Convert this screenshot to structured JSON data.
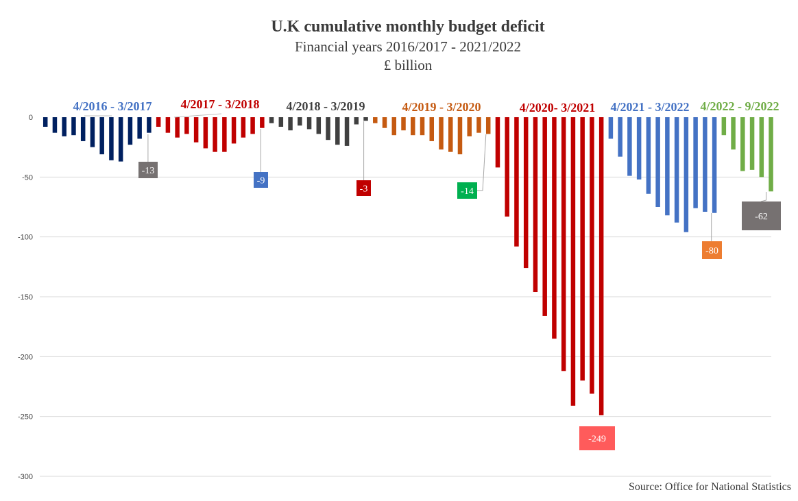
{
  "chart_data": {
    "type": "bar",
    "title": "U.K cumulative monthly budget deficit",
    "subtitle": "Financial years 2016/2017 - 2021/2022",
    "ylabel": "£ billion",
    "source": "Source: Office for National Statistics",
    "ylim": [
      -300,
      0
    ],
    "yticks": [
      0,
      -50,
      -100,
      -150,
      -200,
      -250,
      -300
    ],
    "grid": true,
    "series": [
      {
        "name": "4/2016 - 3/2017",
        "color": "#002060",
        "label_color": "#4472c4",
        "values": [
          -8,
          -13,
          -16,
          -15,
          -20,
          -25,
          -31,
          -36,
          -37,
          -23,
          -18,
          -13
        ]
      },
      {
        "name": "4/2017 - 3/2018",
        "color": "#c00000",
        "label_color": "#c00000",
        "values": [
          -8,
          -13,
          -17,
          -14,
          -21,
          -26,
          -29,
          -29,
          -22,
          -17,
          -14,
          -9
        ]
      },
      {
        "name": "4/2018 - 3/2019",
        "color": "#404040",
        "label_color": "#404040",
        "values": [
          -5,
          -8,
          -11,
          -7,
          -10,
          -14,
          -19,
          -23,
          -24,
          -6,
          -3
        ]
      },
      {
        "name": "4/2019 - 3/2020",
        "color": "#c55a11",
        "label_color": "#c55a11",
        "values": [
          -5,
          -9,
          -15,
          -11,
          -15,
          -15,
          -20,
          -27,
          -29,
          -31,
          -16,
          -13,
          -14
        ]
      },
      {
        "name": "4/2020- 3/2021",
        "color": "#c00000",
        "label_color": "#c00000",
        "values": [
          -42,
          -83,
          -108,
          -126,
          -146,
          -166,
          -185,
          -212,
          -241,
          -220,
          -231,
          -249
        ]
      },
      {
        "name": "4/2021 - 3/2022",
        "color": "#4472c4",
        "label_color": "#4472c4",
        "values": [
          -18,
          -33,
          -49,
          -52,
          -64,
          -75,
          -82,
          -88,
          -96,
          -76,
          -79,
          -80
        ]
      },
      {
        "name": "4/2022 - 9/2022",
        "color": "#70ad47",
        "label_color": "#70ad47",
        "values": [
          -15,
          -27,
          -45,
          -44,
          -50,
          -62
        ]
      }
    ],
    "data_labels": [
      {
        "series": 0,
        "index": 11,
        "text": "-13",
        "color": "#767171"
      },
      {
        "series": 1,
        "index": 11,
        "text": "-9",
        "color": "#4472c4"
      },
      {
        "series": 2,
        "index": 10,
        "text": "-3",
        "color": "#c00000"
      },
      {
        "series": 3,
        "index": 12,
        "text": "-14",
        "color": "#00b050"
      },
      {
        "series": 4,
        "index": 11,
        "text": "-249",
        "color": "#ff5b5b"
      },
      {
        "series": 5,
        "index": 11,
        "text": "-80",
        "color": "#ed7d31"
      },
      {
        "series": 6,
        "index": 5,
        "text": "-62",
        "color": "#767171"
      }
    ]
  }
}
